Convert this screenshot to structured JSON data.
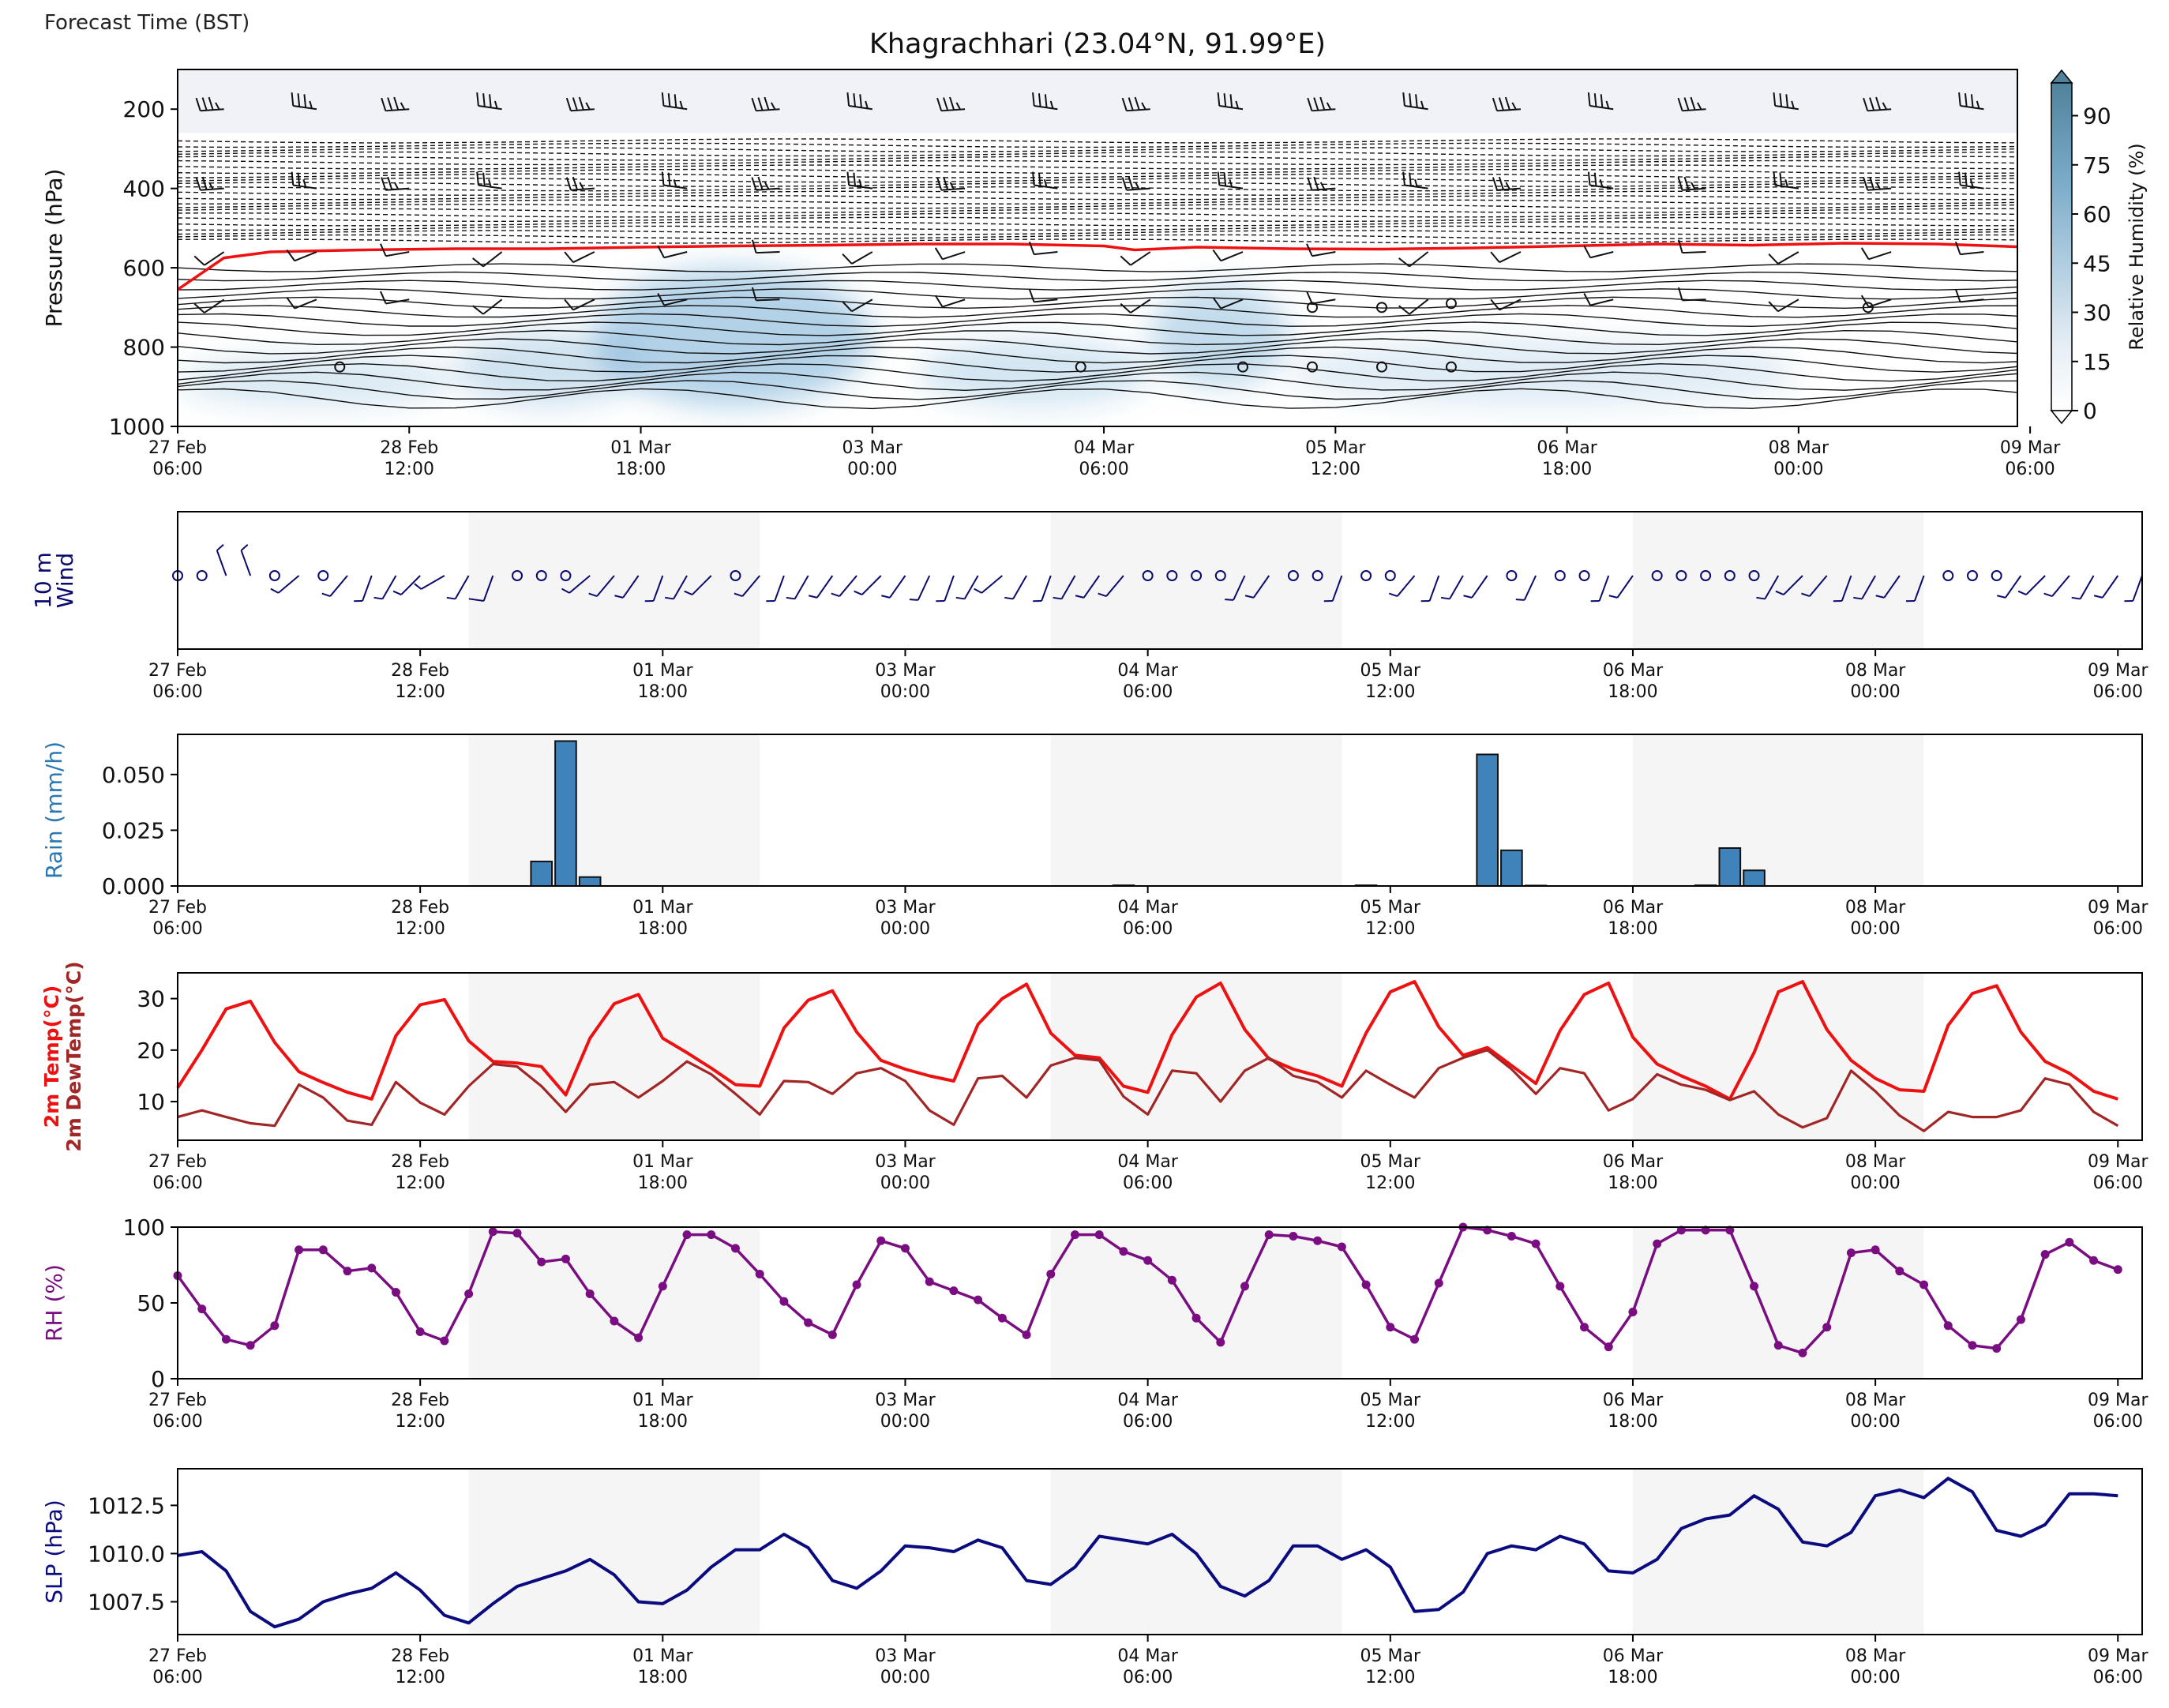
{
  "figure": {
    "forecast_time_label": "Forecast Time (BST)",
    "title": "Khagrachhari (23.04°N, 91.99°E)"
  },
  "colors": {
    "freezing_line": "#ee1111",
    "rh_fill": "#3b8bc2",
    "wind_barb": "#0b0b6e",
    "rain_bar": "#3f83ba",
    "temp": "#ee1111",
    "dewpoint": "#a22626",
    "rh_line": "#7a0d82",
    "slp_line": "#0b0b80",
    "shade": "#f5f5f5"
  },
  "time_axis": {
    "tick_labels": [
      [
        "27 Feb",
        "06:00"
      ],
      [
        "28 Feb",
        "12:00"
      ],
      [
        "01 Mar",
        "18:00"
      ],
      [
        "03 Mar",
        "00:00"
      ],
      [
        "04 Mar",
        "06:00"
      ],
      [
        "05 Mar",
        "12:00"
      ],
      [
        "06 Mar",
        "18:00"
      ],
      [
        "08 Mar",
        "00:00"
      ],
      [
        "09 Mar",
        "06:00"
      ]
    ],
    "tick_hours": [
      0,
      30,
      60,
      90,
      120,
      150,
      180,
      210,
      240
    ],
    "range_hours": [
      0,
      243
    ],
    "night_shading_hours": [
      [
        36,
        72
      ],
      [
        108,
        144
      ],
      [
        180,
        216
      ]
    ]
  },
  "chart_data": [
    {
      "type": "heatmap",
      "panel": "profile",
      "ylabel": "Pressure (hPa)",
      "yticks": [
        200,
        400,
        600,
        800,
        1000
      ],
      "ylim": [
        1000,
        100
      ],
      "y_inverted": true,
      "colorbar": {
        "label": "Relative Humidity (%)",
        "ticks": [
          0,
          15,
          30,
          45,
          60,
          75,
          90
        ],
        "range": [
          0,
          100
        ],
        "extend": "max"
      },
      "freezing_level_hpa": [
        [
          0,
          655
        ],
        [
          6,
          575
        ],
        [
          12,
          560
        ],
        [
          24,
          555
        ],
        [
          36,
          552
        ],
        [
          48,
          552
        ],
        [
          60,
          548
        ],
        [
          72,
          545
        ],
        [
          84,
          543
        ],
        [
          96,
          540
        ],
        [
          108,
          540
        ],
        [
          120,
          545
        ],
        [
          124,
          555
        ],
        [
          132,
          548
        ],
        [
          144,
          552
        ],
        [
          156,
          553
        ],
        [
          168,
          550
        ],
        [
          180,
          545
        ],
        [
          192,
          540
        ],
        [
          204,
          543
        ],
        [
          216,
          538
        ],
        [
          228,
          540
        ],
        [
          240,
          548
        ]
      ],
      "humid_blobs": [
        {
          "hours": [
            54,
            90
          ],
          "hpa": [
            600,
            950
          ],
          "rh": 70
        },
        {
          "hours": [
            126,
            144
          ],
          "hpa": [
            640,
            900
          ],
          "rh": 55
        },
        {
          "hours": [
            36,
            60
          ],
          "hpa": [
            760,
            950
          ],
          "rh": 45
        },
        {
          "hours": [
            96,
            126
          ],
          "hpa": [
            780,
            950
          ],
          "rh": 40
        },
        {
          "hours": [
            0,
            36
          ],
          "hpa": [
            820,
            950
          ],
          "rh": 35
        },
        {
          "hours": [
            144,
            210
          ],
          "hpa": [
            780,
            950
          ],
          "rh": 30
        }
      ],
      "calm_markers": [
        [
          21,
          850
        ],
        [
          117,
          850
        ],
        [
          138,
          850
        ],
        [
          147,
          850
        ],
        [
          156,
          850
        ],
        [
          165,
          850
        ],
        [
          147,
          700
        ],
        [
          156,
          700
        ],
        [
          165,
          690
        ],
        [
          219,
          700
        ]
      ]
    },
    {
      "type": "scatter",
      "panel": "10m-wind",
      "ylabel": "10 m Wind",
      "marker": "wind-barb",
      "interval_hours": 3,
      "wind_dir_deg": [
        0,
        0,
        340,
        340,
        0,
        230,
        0,
        220,
        200,
        210,
        225,
        240,
        210,
        200,
        0,
        0,
        0,
        230,
        220,
        215,
        200,
        210,
        225,
        0,
        220,
        200,
        210,
        215,
        220,
        225,
        215,
        205,
        200,
        210,
        230,
        210,
        200,
        210,
        215,
        220,
        0,
        0,
        0,
        0,
        205,
        215,
        0,
        0,
        200,
        0,
        0,
        220,
        200,
        210,
        215,
        0,
        205,
        0,
        0,
        200,
        215,
        0,
        0,
        0,
        0,
        0,
        210,
        225,
        220,
        200,
        210,
        215,
        200,
        0,
        0,
        0,
        215,
        225,
        220,
        210,
        215,
        200
      ],
      "wind_speed_kt": [
        0,
        0,
        5,
        5,
        0,
        5,
        0,
        5,
        5,
        5,
        5,
        5,
        5,
        10,
        0,
        0,
        0,
        5,
        5,
        5,
        5,
        5,
        5,
        0,
        5,
        5,
        5,
        5,
        5,
        5,
        5,
        5,
        5,
        5,
        5,
        5,
        5,
        5,
        5,
        5,
        0,
        0,
        0,
        0,
        5,
        5,
        0,
        0,
        5,
        0,
        0,
        5,
        5,
        5,
        5,
        0,
        5,
        0,
        0,
        5,
        5,
        0,
        0,
        0,
        0,
        0,
        5,
        5,
        5,
        5,
        5,
        5,
        5,
        0,
        0,
        0,
        5,
        5,
        5,
        5,
        5,
        5
      ]
    },
    {
      "type": "bar",
      "panel": "rain",
      "ylabel": "Rain (mm/h)",
      "yticks": [
        "0.000",
        "0.025",
        "0.050"
      ],
      "ylim": [
        0,
        0.068
      ],
      "x_hours": [
        45,
        48,
        51,
        117,
        147,
        162,
        165,
        168,
        189,
        192,
        195
      ],
      "values": [
        0.011,
        0.065,
        0.004,
        0.0003,
        0.0003,
        0.059,
        0.016,
        0.0002,
        0.0003,
        0.017,
        0.007
      ]
    },
    {
      "type": "line",
      "panel": "temperature",
      "ylabel_lines": [
        "2m Temp(°C)",
        "2m DewTemp(°C)"
      ],
      "yticks": [
        10,
        20,
        30
      ],
      "ylim": [
        2.5,
        35
      ],
      "interval_hours": 3,
      "series": [
        {
          "key": "temp",
          "values": [
            12.7,
            20.0,
            28.0,
            29.5,
            21.5,
            15.8,
            13.7,
            11.8,
            10.5,
            22.8,
            28.8,
            29.8,
            21.8,
            17.8,
            17.5,
            16.8,
            11.3,
            22.3,
            29.0,
            30.8,
            22.3,
            19.5,
            16.5,
            13.3,
            13.0,
            24.3,
            29.7,
            31.5,
            23.5,
            18.0,
            16.3,
            15.0,
            14.0,
            25.0,
            30.0,
            32.8,
            23.3,
            19.0,
            18.5,
            13.0,
            11.8,
            23.0,
            30.3,
            33.0,
            24.0,
            18.3,
            16.3,
            15.0,
            13.0,
            23.3,
            31.3,
            33.3,
            24.5,
            19.0,
            20.5,
            17.0,
            13.5,
            23.8,
            30.8,
            33.0,
            22.5,
            17.3,
            15.0,
            13.0,
            10.5,
            19.5,
            31.3,
            33.3,
            24.0,
            18.0,
            14.5,
            12.3,
            12.0,
            24.8,
            31.0,
            32.5,
            23.5,
            17.8,
            15.5,
            12.0,
            10.5
          ]
        },
        {
          "key": "dewpoint",
          "values": [
            7.0,
            8.3,
            7.0,
            5.8,
            5.3,
            13.3,
            10.8,
            6.3,
            5.5,
            13.8,
            9.8,
            7.5,
            13.0,
            17.3,
            16.8,
            13.0,
            8.0,
            13.3,
            13.8,
            10.8,
            14.0,
            17.8,
            15.3,
            11.5,
            7.5,
            14.0,
            13.8,
            11.5,
            15.5,
            16.5,
            14.0,
            8.3,
            5.5,
            14.5,
            15.0,
            10.8,
            17.0,
            18.5,
            18.0,
            11.0,
            7.5,
            16.0,
            15.5,
            10.0,
            16.0,
            18.5,
            15.0,
            13.8,
            10.8,
            16.0,
            13.3,
            10.8,
            16.5,
            18.5,
            20.0,
            16.3,
            11.5,
            16.5,
            15.5,
            8.3,
            10.5,
            15.3,
            13.3,
            12.3,
            10.3,
            12.0,
            7.5,
            5.0,
            6.8,
            16.0,
            12.0,
            7.3,
            4.3,
            8.0,
            7.0,
            7.0,
            8.3,
            14.5,
            13.3,
            8.0,
            5.3
          ]
        }
      ]
    },
    {
      "type": "line",
      "panel": "rh",
      "ylabel": "RH (%)",
      "yticks": [
        0,
        50,
        100
      ],
      "ylim": [
        0,
        100
      ],
      "interval_hours": 3,
      "marker": "dot",
      "values": [
        68,
        46,
        26,
        22,
        35,
        85,
        85,
        71,
        73,
        57,
        31,
        25,
        56,
        97,
        96,
        77,
        79,
        56,
        38,
        27,
        61,
        95,
        95,
        86,
        69,
        51,
        37,
        29,
        62,
        91,
        86,
        64,
        58,
        52,
        40,
        29,
        69,
        95,
        95,
        84,
        78,
        65,
        40,
        24,
        61,
        95,
        94,
        91,
        87,
        62,
        34,
        26,
        63,
        100,
        98,
        94,
        89,
        61,
        34,
        21,
        44,
        89,
        98,
        98,
        98,
        61,
        22,
        17,
        34,
        83,
        85,
        71,
        62,
        35,
        22,
        20,
        39,
        82,
        90,
        78,
        72
      ]
    },
    {
      "type": "line",
      "panel": "slp",
      "ylabel": "SLP (hPa)",
      "yticks": [
        "1007.5",
        "1010.0",
        "1012.5"
      ],
      "ylim": [
        1005.8,
        1014.4
      ],
      "interval_hours": 3,
      "values": [
        1009.9,
        1010.1,
        1009.1,
        1007.0,
        1006.2,
        1006.6,
        1007.5,
        1007.9,
        1008.2,
        1009.0,
        1008.1,
        1006.8,
        1006.4,
        1007.4,
        1008.3,
        1008.7,
        1009.1,
        1009.7,
        1008.9,
        1007.5,
        1007.4,
        1008.1,
        1009.3,
        1010.2,
        1010.2,
        1011.0,
        1010.3,
        1008.6,
        1008.2,
        1009.1,
        1010.4,
        1010.3,
        1010.1,
        1010.7,
        1010.3,
        1008.6,
        1008.4,
        1009.3,
        1010.9,
        1010.7,
        1010.5,
        1011.0,
        1010.0,
        1008.3,
        1007.8,
        1008.6,
        1010.4,
        1010.4,
        1009.7,
        1010.2,
        1009.3,
        1007.0,
        1007.1,
        1008.0,
        1010.0,
        1010.4,
        1010.2,
        1010.9,
        1010.5,
        1009.1,
        1009.0,
        1009.7,
        1011.3,
        1011.8,
        1012.0,
        1013.0,
        1012.3,
        1010.6,
        1010.4,
        1011.1,
        1013.0,
        1013.3,
        1012.9,
        1013.9,
        1013.2,
        1011.2,
        1010.9,
        1011.5,
        1013.1,
        1013.1,
        1013.0
      ]
    }
  ]
}
